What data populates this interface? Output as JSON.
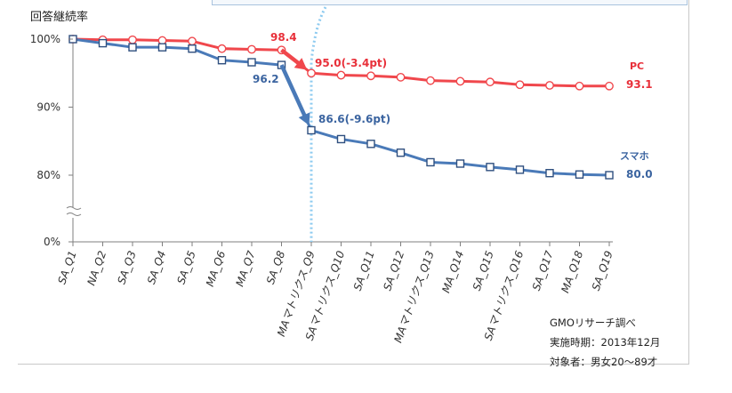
{
  "chart_data": {
    "type": "line",
    "ylabel": "回答継続率",
    "categories": [
      "SA_Q1",
      "NA_Q2",
      "SA_Q3",
      "SA_Q4",
      "SA_Q5",
      "MA_Q6",
      "MA_Q7",
      "SA_Q8",
      "MAマトリクス_Q9",
      "SAマトリクス_Q10",
      "SA_Q11",
      "SA_Q12",
      "MAマトリクス_Q13",
      "MA_Q14",
      "SA_Q15",
      "SAマトリクス_Q16",
      "SA_Q17",
      "MA_Q18",
      "SA_Q19"
    ],
    "y_ticks": [
      "100%",
      "90%",
      "80%",
      "0%"
    ],
    "y_axis_break": "80% to 0%",
    "series": [
      {
        "name": "PC",
        "color": "#f0474c",
        "marker": "circle",
        "values": [
          100,
          99.9,
          99.9,
          99.8,
          99.7,
          98.6,
          98.5,
          98.4,
          95.0,
          94.7,
          94.6,
          94.4,
          93.9,
          93.8,
          93.7,
          93.3,
          93.2,
          93.1,
          93.1
        ]
      },
      {
        "name": "スマホ",
        "color": "#4a7ab8",
        "marker": "square",
        "values": [
          100,
          99.4,
          98.8,
          98.8,
          98.6,
          96.9,
          96.6,
          96.2,
          86.6,
          85.3,
          84.6,
          83.3,
          81.9,
          81.7,
          81.2,
          80.8,
          80.3,
          80.1,
          80.0
        ]
      }
    ],
    "annotations": {
      "pc_before": "98.4",
      "pc_drop": "95.0(-3.4pt)",
      "pc_end": "93.1",
      "sp_before": "96.2",
      "sp_drop": "86.6(-9.6pt)",
      "sp_end": "80.0"
    },
    "colors": {
      "divider": "#8ecbf0",
      "axis": "#7f7f7f"
    }
  },
  "notes": {
    "source": "GMOリサーチ調べ",
    "period": "実施時期：2013年12月",
    "target": "対象者：男女20～89才"
  }
}
